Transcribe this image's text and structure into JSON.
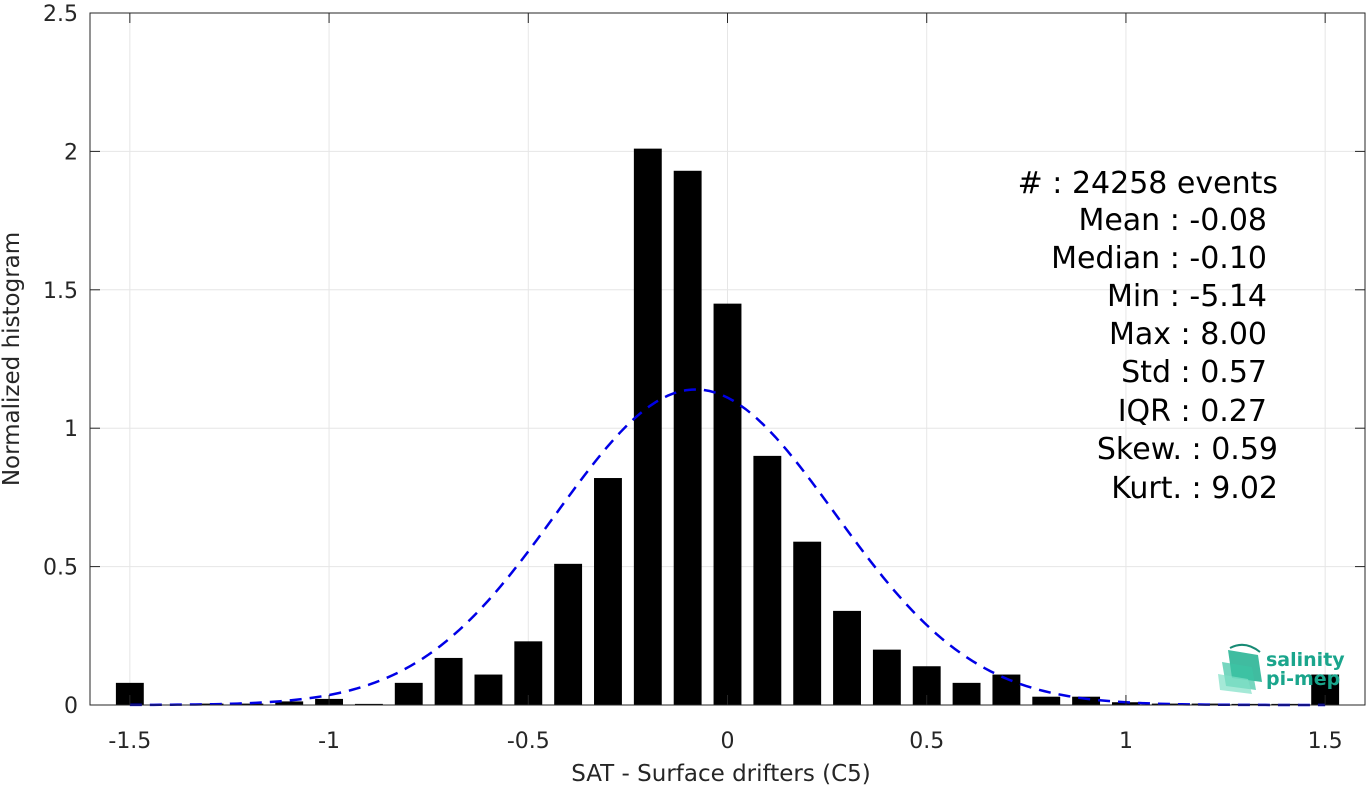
{
  "chart_data": {
    "type": "bar",
    "xlabel": "SAT - Surface drifters (C5)",
    "ylabel": "Normalized histogram",
    "xlim": [
      -1.6,
      1.6
    ],
    "ylim": [
      0,
      2.5
    ],
    "xticks": [
      -1.5,
      -1,
      -0.5,
      0,
      0.5,
      1,
      1.5
    ],
    "xtick_labels": [
      "-1.5",
      "-1",
      "-0.5",
      "0",
      "0.5",
      "1",
      "1.5"
    ],
    "yticks": [
      0,
      0.5,
      1,
      1.5,
      2,
      2.5
    ],
    "ytick_labels": [
      "0",
      "0.5",
      "1",
      "1.5",
      "2",
      "2.5"
    ],
    "grid": true,
    "bar_color": "#000000",
    "bar_width": 0.07,
    "bins": [
      {
        "x": -1.5,
        "y": 0.08
      },
      {
        "x": -1.4,
        "y": 0.0
      },
      {
        "x": -1.3,
        "y": 0.005
      },
      {
        "x": -1.2,
        "y": 0.005
      },
      {
        "x": -1.1,
        "y": 0.013
      },
      {
        "x": -1.0,
        "y": 0.022
      },
      {
        "x": -0.9,
        "y": 0.004
      },
      {
        "x": -0.8,
        "y": 0.08
      },
      {
        "x": -0.7,
        "y": 0.17
      },
      {
        "x": -0.6,
        "y": 0.11
      },
      {
        "x": -0.5,
        "y": 0.23
      },
      {
        "x": -0.4,
        "y": 0.51
      },
      {
        "x": -0.3,
        "y": 0.82
      },
      {
        "x": -0.2,
        "y": 2.01
      },
      {
        "x": -0.1,
        "y": 1.93
      },
      {
        "x": 0.0,
        "y": 1.45
      },
      {
        "x": 0.1,
        "y": 0.9
      },
      {
        "x": 0.2,
        "y": 0.59
      },
      {
        "x": 0.3,
        "y": 0.34
      },
      {
        "x": 0.4,
        "y": 0.2
      },
      {
        "x": 0.5,
        "y": 0.14
      },
      {
        "x": 0.6,
        "y": 0.08
      },
      {
        "x": 0.7,
        "y": 0.11
      },
      {
        "x": 0.8,
        "y": 0.03
      },
      {
        "x": 0.9,
        "y": 0.03
      },
      {
        "x": 1.0,
        "y": 0.01
      },
      {
        "x": 1.1,
        "y": 0.005
      },
      {
        "x": 1.2,
        "y": 0.005
      },
      {
        "x": 1.3,
        "y": 0.004
      },
      {
        "x": 1.4,
        "y": 0.004
      },
      {
        "x": 1.5,
        "y": 0.11
      }
    ],
    "fit_curve": {
      "type": "gaussian",
      "mean": -0.08,
      "std": 0.35,
      "peak": 1.14,
      "x_range": [
        -1.5,
        1.5
      ],
      "color": "#0000e6",
      "style": "dashed"
    },
    "stats": [
      "#  : 24258 events",
      "Mean : -0.08",
      "Median : -0.10",
      "Min : -5.14",
      "Max : 8.00",
      "Std : 0.57",
      "IQR : 0.27",
      "Skew. : 0.59",
      "Kurt. : 9.02"
    ],
    "legend_position": "top-right"
  },
  "logo": {
    "line1": "salinity",
    "line2": "pi-mep",
    "color": "#1aa58c"
  }
}
